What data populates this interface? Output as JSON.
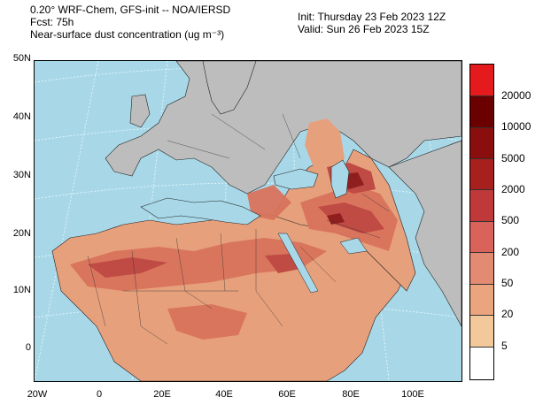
{
  "header": {
    "line1": "0.20° WRF-Chem, GFS-init -- NOA/IERSD",
    "line2": "Fcst: 75h",
    "line3": "Near-surface dust concentration (ug m⁻³)",
    "init": "Init: Thursday 23 Feb 2023  12Z",
    "valid": "Valid: Sun 26 Feb 2023  15Z"
  },
  "axes": {
    "y_labels": [
      "50N",
      "40N",
      "30N",
      "20N",
      "10N",
      "0"
    ],
    "x_labels": [
      "20W",
      "0",
      "20E",
      "40E",
      "60E",
      "80E",
      "100E"
    ]
  },
  "colorbar": {
    "labels": [
      "20000",
      "10000",
      "5000",
      "2000",
      "500",
      "200",
      "50",
      "20",
      "5"
    ],
    "colors": [
      "#e41a1c",
      "#6b0000",
      "#8b0e0e",
      "#a8201e",
      "#c0393a",
      "#d9625a",
      "#e38a72",
      "#eaa57f",
      "#f3c89a",
      "#ffffff"
    ]
  },
  "map_colors": {
    "ocean": "#a8d8e8",
    "land": "#bdbdbd",
    "dust_low": "#e7a07c",
    "dust_mid": "#d9735c",
    "dust_high": "#c04a44",
    "dust_max": "#8f1f1f"
  }
}
